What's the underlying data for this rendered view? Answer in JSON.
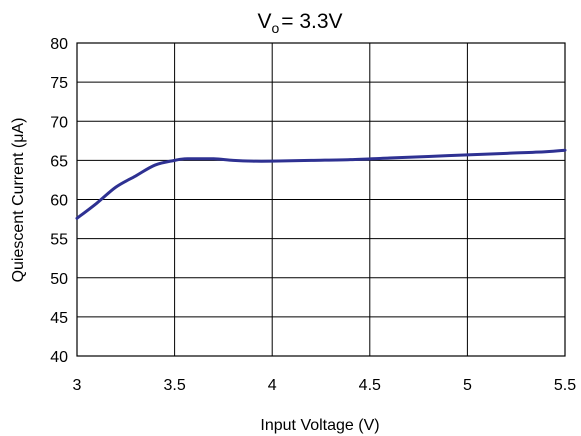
{
  "chart_data": {
    "type": "line",
    "title": "V",
    "title_subscript": "o",
    "title_suffix": "= 3.3V",
    "xlabel": "Input Voltage (V)",
    "ylabel": "Quiescent Current (μA)",
    "xlim": [
      3,
      5.5
    ],
    "ylim": [
      40,
      80
    ],
    "xticks": [
      "3",
      "3.5",
      "4",
      "4.5",
      "5",
      "5.5"
    ],
    "yticks": [
      "40",
      "45",
      "50",
      "55",
      "60",
      "65",
      "70",
      "75",
      "80"
    ],
    "grid": true,
    "series_color": "#2e3192",
    "series": [
      {
        "x": [
          3.0,
          3.1,
          3.2,
          3.3,
          3.4,
          3.5,
          3.55,
          3.6,
          3.7,
          3.8,
          3.9,
          4.0,
          4.2,
          4.4,
          4.6,
          4.8,
          5.0,
          5.2,
          5.4,
          5.5
        ],
        "values": [
          57.6,
          59.5,
          61.6,
          63.0,
          64.4,
          65.0,
          65.2,
          65.2,
          65.2,
          65.0,
          64.9,
          64.9,
          65.0,
          65.1,
          65.3,
          65.5,
          65.7,
          65.9,
          66.1,
          66.3
        ]
      }
    ]
  }
}
